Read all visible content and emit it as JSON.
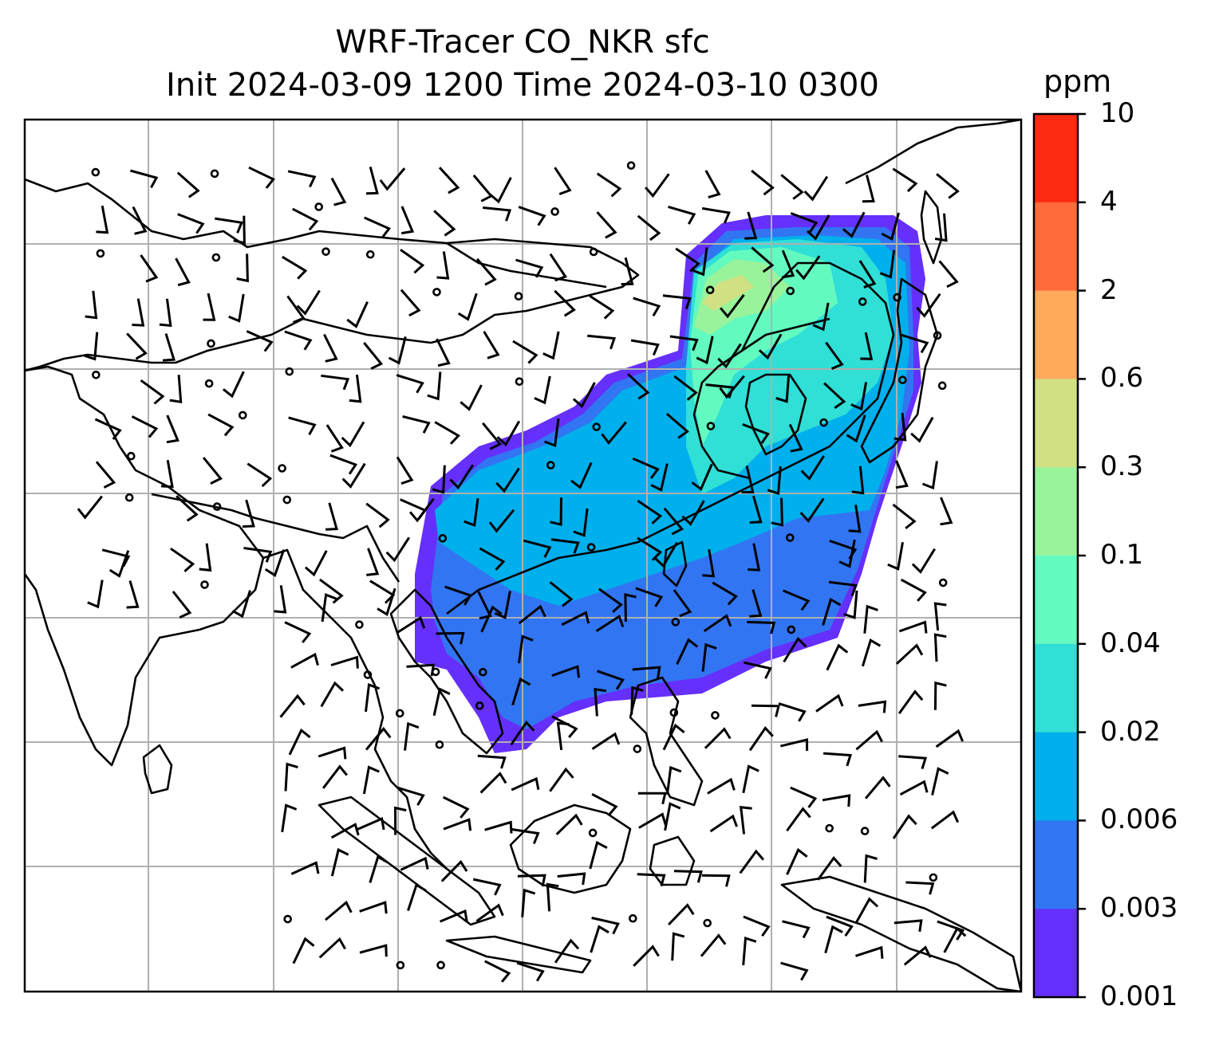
{
  "title_line1": "WRF-Tracer CO_NKR sfc",
  "title_line2": "Init 2024-03-09 1200 Time 2024-03-10 0300",
  "colorbar": {
    "unit": "ppm",
    "labels": [
      "10",
      "4",
      "2",
      "0.6",
      "0.3",
      "0.1",
      "0.04",
      "0.02",
      "0.006",
      "0.003",
      "0.001"
    ],
    "colors": [
      "#ff2a12",
      "#ff6c3a",
      "#ffaa5c",
      "#d0e082",
      "#99f39a",
      "#63fac0",
      "#30dfd6",
      "#00b0ec",
      "#3275f2",
      "#6530fb"
    ]
  },
  "map": {
    "gridlines": true,
    "layers": [
      "coastlines",
      "country-borders",
      "tracer-concentration-fill",
      "wind-barbs"
    ]
  }
}
